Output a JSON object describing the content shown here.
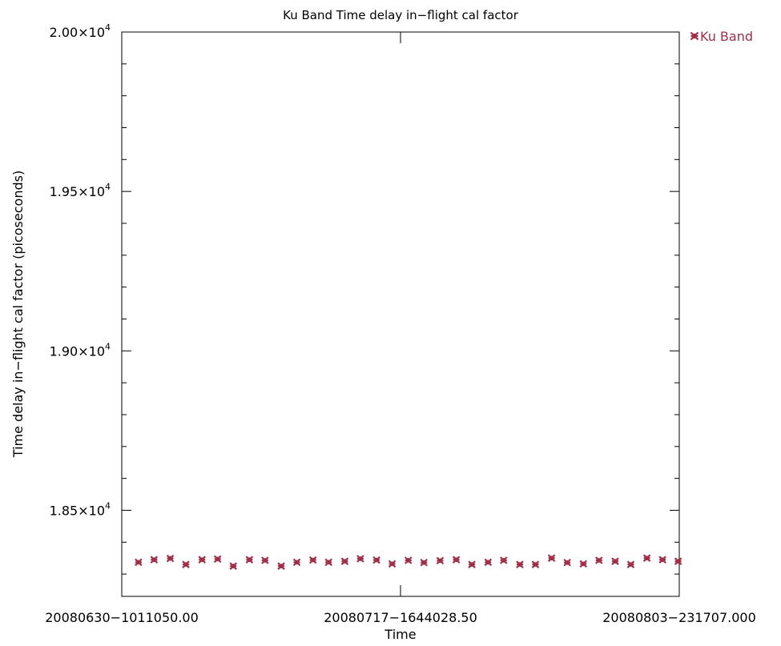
{
  "chart_data": {
    "type": "scatter",
    "title": "Ku Band Time delay in−flight cal factor",
    "xlabel": "Time",
    "ylabel": "Time delay in−flight cal factor (picoseconds)",
    "x_tick_labels": [
      "20080630−1011050.00",
      "20080717−1644028.50",
      "20080803−231707.000"
    ],
    "y_ticks": [
      {
        "value": 18500,
        "mantissa": "1.85",
        "exp": "4"
      },
      {
        "value": 19000,
        "mantissa": "1.90",
        "exp": "4"
      },
      {
        "value": 19500,
        "mantissa": "1.95",
        "exp": "4"
      },
      {
        "value": 20000,
        "mantissa": "2.00",
        "exp": "4"
      }
    ],
    "y_tick_times": "×10",
    "ylim": [
      18230,
      20000
    ],
    "xlim": [
      0,
      1
    ],
    "grid": false,
    "legend_position": "top-right outside",
    "series": [
      {
        "name": "Ku Band",
        "color": "#a0304a",
        "marker": "asterisk",
        "x": [
          0.03,
          0.058,
          0.087,
          0.115,
          0.144,
          0.172,
          0.2,
          0.229,
          0.257,
          0.286,
          0.314,
          0.343,
          0.371,
          0.4,
          0.428,
          0.457,
          0.485,
          0.514,
          0.542,
          0.571,
          0.6,
          0.628,
          0.657,
          0.685,
          0.714,
          0.742,
          0.771,
          0.799,
          0.828,
          0.856,
          0.885,
          0.913,
          0.942,
          0.97,
          0.998
        ],
        "y": [
          18337,
          18345,
          18349,
          18330,
          18345,
          18347,
          18325,
          18345,
          18343,
          18325,
          18337,
          18344,
          18337,
          18340,
          18348,
          18344,
          18332,
          18343,
          18336,
          18342,
          18345,
          18330,
          18337,
          18343,
          18330,
          18330,
          18350,
          18336,
          18332,
          18343,
          18340,
          18330,
          18350,
          18345,
          18340
        ]
      }
    ]
  }
}
